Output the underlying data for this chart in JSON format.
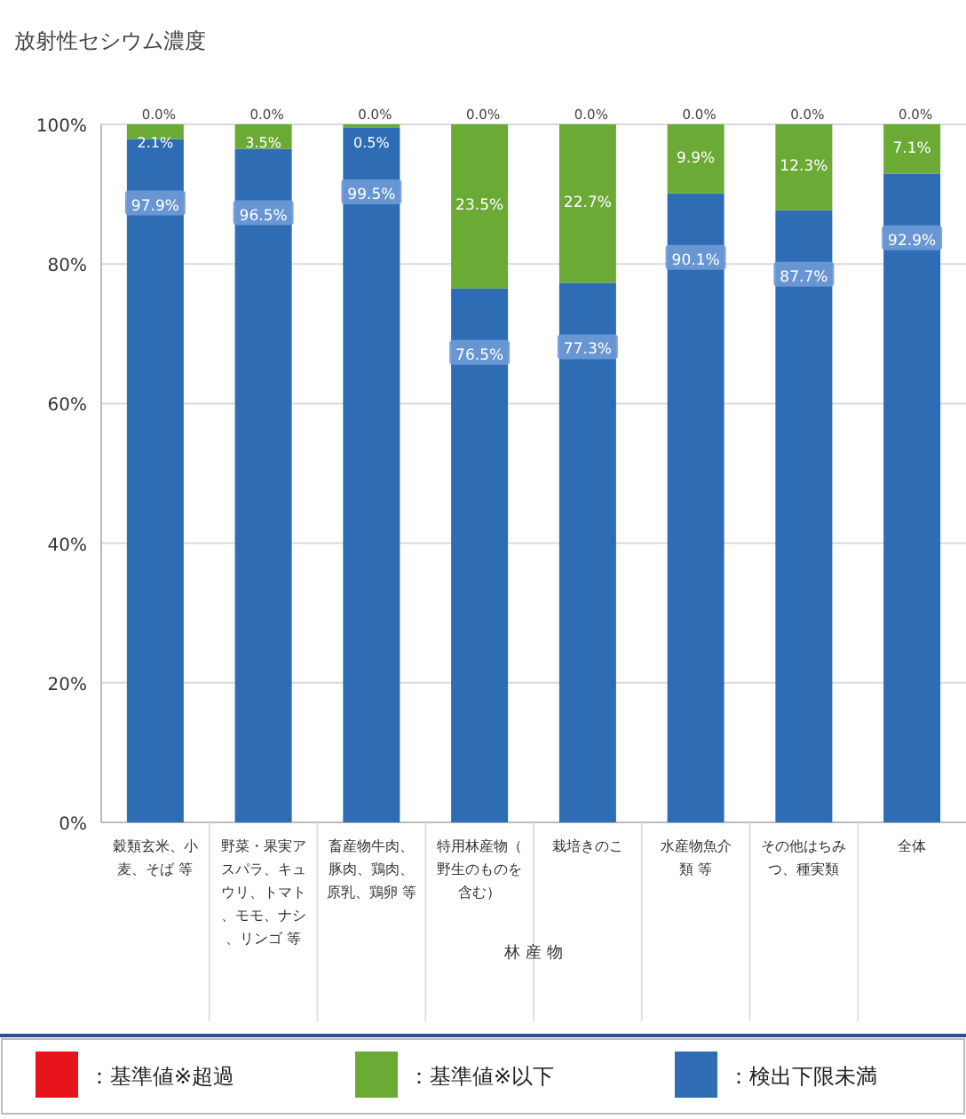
{
  "chart_data": {
    "type": "bar",
    "stacked": true,
    "title": "放射性セシウム濃度",
    "categories": [
      "穀類玄米、小麦、そば 等",
      "野菜・果実アスパラ、キュウリ、トマト、モモ、ナシ、リンゴ 等",
      "畜産物牛肉、豚肉、鶏肉、原乳、鶏卵 等",
      "特用林産物（野生のものを含む）",
      "栽培きのこ",
      "水産物魚介類 等",
      "その他はちみつ、種実類",
      "全体"
    ],
    "series": [
      {
        "name": "：検出下限未満",
        "color": "#2e6db4",
        "values": [
          97.9,
          96.5,
          99.5,
          76.5,
          77.3,
          90.1,
          87.7,
          92.9
        ],
        "value_labels": [
          "97.9%",
          "96.5%",
          "99.5%",
          "76.5%",
          "77.3%",
          "90.1%",
          "87.7%",
          "92.9%"
        ]
      },
      {
        "name": "：基準値※以下",
        "color": "#6aaa35",
        "values": [
          2.1,
          3.5,
          0.5,
          23.5,
          22.7,
          9.9,
          12.3,
          7.1
        ],
        "value_labels": [
          "2.1%",
          "3.5%",
          "0.5%",
          "23.5%",
          "22.7%",
          "9.9%",
          "12.3%",
          "7.1%"
        ]
      },
      {
        "name": "：基準値※超過",
        "color": "#e8141b",
        "values": [
          0.0,
          0.0,
          0.0,
          0.0,
          0.0,
          0.0,
          0.0,
          0.0
        ],
        "value_labels": [
          "0.0%",
          "0.0%",
          "0.0%",
          "0.0%",
          "0.0%",
          "0.0%",
          "0.0%",
          "0.0%"
        ]
      }
    ],
    "ylim": [
      0,
      100
    ],
    "yticks": [
      {
        "value": 0,
        "label": "0%"
      },
      {
        "value": 20,
        "label": "20%"
      },
      {
        "value": 40,
        "label": "40%"
      },
      {
        "value": 60,
        "label": "60%"
      },
      {
        "value": 80,
        "label": "80%"
      },
      {
        "value": 100,
        "label": "100%"
      }
    ],
    "grid": "y",
    "legend": "bottom",
    "annotations": [
      "林 産 物"
    ]
  }
}
